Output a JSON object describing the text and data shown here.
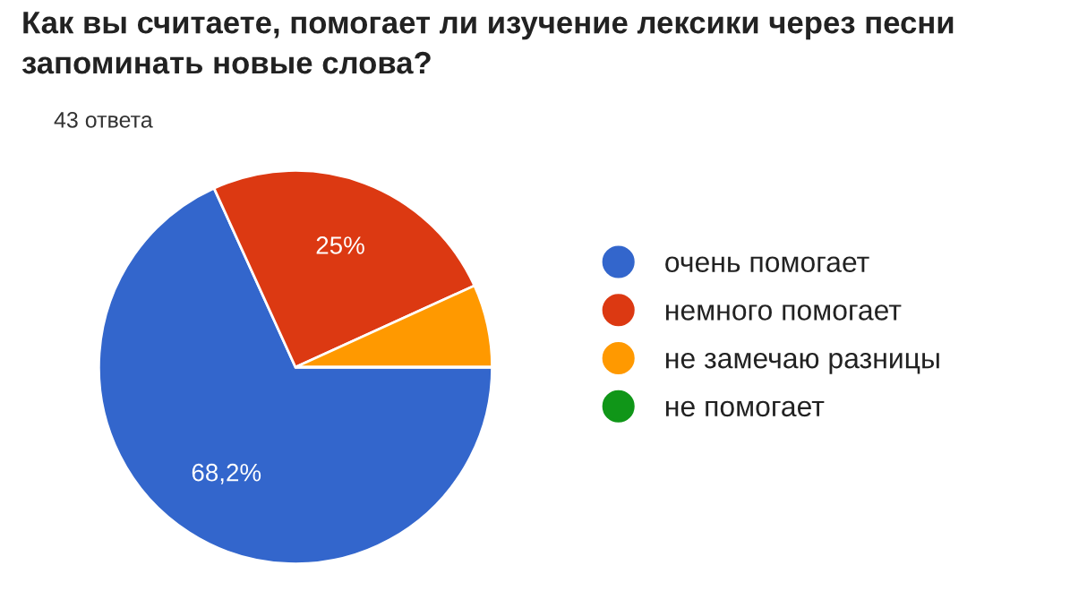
{
  "chart_data": {
    "type": "pie",
    "title": "Как вы считаете, помогает ли изучение лексики через песни\nзапоминать новые слова?",
    "annotations": [
      "43 ответа"
    ],
    "categories": [
      "очень помогает",
      "немного помогает",
      "не замечаю разницы",
      "не помогает"
    ],
    "values": [
      68.2,
      25,
      6.8,
      0
    ],
    "colors": [
      "#3366cc",
      "#dc3912",
      "#ff9900",
      "#109618"
    ],
    "value_labels": [
      "68,2%",
      "25%",
      null,
      null
    ],
    "legend": "right"
  }
}
